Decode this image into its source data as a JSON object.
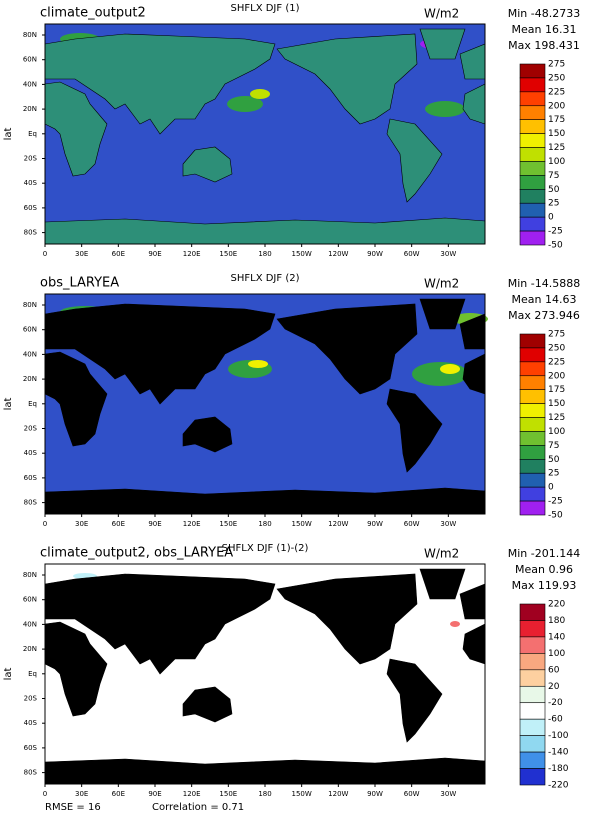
{
  "axes": {
    "y_label": "lat",
    "lat_ticks": [
      "80N",
      "60N",
      "40N",
      "20N",
      "Eq",
      "20S",
      "40S",
      "60S",
      "80S"
    ],
    "lon_ticks": [
      "0",
      "30E",
      "60E",
      "90E",
      "120E",
      "150E",
      "180",
      "150W",
      "120W",
      "90W",
      "60W",
      "30W"
    ]
  },
  "panels": [
    {
      "left_title": "climate_output2",
      "center_title": "SHFLX DJF (1)",
      "units": "W/m2",
      "min": "Min -48.2733",
      "mean": "Mean 16.31",
      "max": "Max 198.431",
      "colorbar": {
        "levels": [
          275,
          250,
          225,
          200,
          175,
          150,
          125,
          100,
          75,
          50,
          25,
          0,
          -25,
          -50
        ],
        "colors": [
          "#a00000",
          "#e00000",
          "#ff4000",
          "#ff8000",
          "#ffc000",
          "#f0f000",
          "#c0e000",
          "#70c030",
          "#30a040",
          "#208060",
          "#2060b0",
          "#4040e0",
          "#a020f0"
        ]
      }
    },
    {
      "left_title": "obs_LARYEA",
      "center_title": "SHFLX DJF (2)",
      "units": "W/m2",
      "min": "Min -14.5888",
      "mean": "Mean 14.63",
      "max": "Max 273.946",
      "colorbar": {
        "levels": [
          275,
          250,
          225,
          200,
          175,
          150,
          125,
          100,
          75,
          50,
          25,
          0,
          -25,
          -50
        ],
        "colors": [
          "#a00000",
          "#e00000",
          "#ff4000",
          "#ff8000",
          "#ffc000",
          "#f0f000",
          "#c0e000",
          "#70c030",
          "#30a040",
          "#208060",
          "#2060b0",
          "#4040e0",
          "#a020f0"
        ]
      }
    },
    {
      "left_title": "climate_output2, obs_LARYEA",
      "center_title": "SHFLX DJF (1)-(2)",
      "units": "W/m2",
      "min": "Min -201.144",
      "mean": "Mean 0.96",
      "max": "Max 119.93",
      "colorbar": {
        "levels": [
          220,
          180,
          140,
          100,
          60,
          20,
          -20,
          -60,
          -100,
          -140,
          -180,
          -220
        ],
        "colors": [
          "#a00020",
          "#e82030",
          "#f47070",
          "#f9a880",
          "#fdd0a0",
          "#e8f8e8",
          "#ffffff",
          "#c0f0f8",
          "#90d8f0",
          "#4090e8",
          "#2030d0"
        ]
      }
    }
  ],
  "footer": {
    "rmse": "RMSE = 16",
    "correlation": "Correlation = 0.71"
  }
}
